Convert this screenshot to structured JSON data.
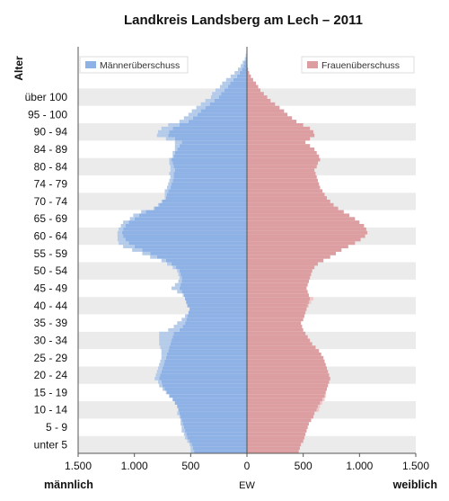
{
  "chart_data": {
    "type": "bar",
    "orientation": "horizontal-population-pyramid",
    "title": "Landkreis Landsberg am Lech – 2011",
    "ylabel": "Alter",
    "xlabel": "EW",
    "left_label": "männlich",
    "right_label": "weiblich",
    "xlim": [
      -1500,
      1500
    ],
    "x_ticks": [
      -1500,
      -1000,
      -500,
      0,
      500,
      1000,
      1500
    ],
    "x_tick_labels": [
      "1.500",
      "1.000",
      "500",
      "0",
      "500",
      "1.000",
      "1.500"
    ],
    "age_groups": [
      "unter 5",
      "5 - 9",
      "10 - 14",
      "15 - 19",
      "20 - 24",
      "25 - 29",
      "30 - 34",
      "35 - 39",
      "40 - 44",
      "45 - 49",
      "50 - 54",
      "55 - 59",
      "60 - 64",
      "65 - 69",
      "70 - 74",
      "74 - 79",
      "80 - 84",
      "84 - 89",
      "90 - 94",
      "95 - 100",
      "über 100"
    ],
    "legend": {
      "male_surplus": "Männerüberschuss",
      "female_surplus": "Frauenüberschuss"
    },
    "colors": {
      "male": "#8fb2e6",
      "female": "#dc9ea0",
      "male_surplus": "#b5cbea",
      "female_surplus": "#eccacb",
      "stripe": "#ebebeb",
      "axis": "#555555"
    },
    "series": [
      {
        "name": "männlich",
        "values": [
          470,
          480,
          490,
          510,
          530,
          540,
          550,
          560,
          570,
          580,
          590,
          600,
          610,
          620,
          640,
          660,
          690,
          710,
          730,
          750,
          760,
          780,
          770,
          760,
          750,
          740,
          730,
          720,
          710,
          700,
          690,
          680,
          670,
          660,
          650,
          600,
          570,
          550,
          540,
          530,
          520,
          510,
          530,
          540,
          550,
          560,
          580,
          600,
          590,
          580,
          580,
          590,
          600,
          630,
          670,
          720,
          800,
          860,
          930,
          1000,
          1050,
          1080,
          1100,
          1110,
          1100,
          1080,
          1050,
          1000,
          960,
          900,
          820,
          780,
          750,
          720,
          710,
          700,
          680,
          670,
          660,
          650,
          650,
          640,
          650,
          660,
          670,
          650,
          640,
          620,
          600,
          580,
          640,
          700,
          690,
          660,
          600,
          520,
          480,
          440,
          410,
          370,
          330,
          290,
          250,
          230,
          200,
          170,
          150,
          120,
          90,
          65,
          45,
          30,
          20,
          10,
          6,
          3,
          1
        ]
      },
      {
        "name": "weiblich",
        "values": [
          460,
          470,
          480,
          500,
          510,
          520,
          530,
          540,
          550,
          570,
          590,
          600,
          620,
          630,
          650,
          670,
          690,
          700,
          710,
          720,
          730,
          740,
          730,
          720,
          710,
          700,
          690,
          680,
          660,
          640,
          610,
          580,
          560,
          540,
          520,
          500,
          490,
          480,
          500,
          510,
          520,
          530,
          540,
          550,
          560,
          550,
          540,
          530,
          540,
          550,
          560,
          570,
          580,
          600,
          630,
          680,
          740,
          790,
          840,
          900,
          960,
          1010,
          1050,
          1070,
          1060,
          1040,
          1000,
          960,
          910,
          860,
          810,
          770,
          740,
          710,
          690,
          670,
          650,
          640,
          630,
          620,
          610,
          600,
          620,
          630,
          650,
          640,
          620,
          600,
          560,
          520,
          560,
          600,
          590,
          560,
          500,
          440,
          400,
          360,
          330,
          290,
          250,
          210,
          180,
          150,
          120,
          100,
          80,
          55,
          35,
          20,
          10,
          5,
          2,
          1,
          1,
          1,
          0
        ]
      },
      {
        "name": "Männerüberschuss",
        "values": [
          30,
          20,
          20,
          20,
          20,
          20,
          30,
          20,
          20,
          10,
          10,
          20,
          0,
          0,
          0,
          0,
          0,
          10,
          20,
          30,
          30,
          40,
          40,
          40,
          40,
          40,
          40,
          40,
          50,
          60,
          80,
          100,
          110,
          120,
          130,
          100,
          80,
          70,
          40,
          20,
          0,
          0,
          0,
          0,
          0,
          10,
          40,
          70,
          50,
          30,
          20,
          20,
          20,
          30,
          40,
          40,
          60,
          70,
          90,
          100,
          90,
          70,
          50,
          40,
          40,
          40,
          50,
          40,
          50,
          40,
          10,
          10,
          10,
          10,
          20,
          30,
          30,
          30,
          30,
          30,
          40,
          40,
          30,
          30,
          20,
          10,
          20,
          20,
          40,
          60,
          80,
          100,
          100,
          100,
          100,
          80,
          80,
          80,
          80,
          80,
          80,
          80,
          70,
          80,
          80,
          70,
          70,
          65,
          55,
          45,
          35,
          25,
          18,
          9,
          5,
          2,
          0
        ]
      },
      {
        "name": "Frauenüberschuss",
        "values": [
          0,
          0,
          0,
          0,
          0,
          0,
          0,
          0,
          0,
          0,
          0,
          0,
          20,
          20,
          20,
          20,
          10,
          0,
          0,
          0,
          0,
          0,
          0,
          0,
          0,
          0,
          0,
          0,
          0,
          0,
          0,
          0,
          0,
          0,
          0,
          0,
          0,
          0,
          0,
          0,
          0,
          0,
          10,
          20,
          30,
          0,
          0,
          0,
          0,
          0,
          0,
          0,
          0,
          0,
          0,
          0,
          0,
          0,
          0,
          0,
          0,
          0,
          0,
          0,
          0,
          0,
          0,
          0,
          0,
          0,
          0,
          0,
          0,
          0,
          0,
          0,
          0,
          0,
          0,
          0,
          0,
          0,
          0,
          0,
          0,
          0,
          0,
          0,
          0,
          0,
          0,
          0,
          0,
          0,
          0,
          0,
          0,
          0,
          0,
          0,
          0,
          0,
          0,
          0,
          0,
          0,
          0,
          0,
          0,
          0,
          0,
          0,
          0,
          0,
          0,
          0,
          0
        ]
      }
    ],
    "note": "values per single year of age 0..100+ (index = age), read off the figure"
  }
}
